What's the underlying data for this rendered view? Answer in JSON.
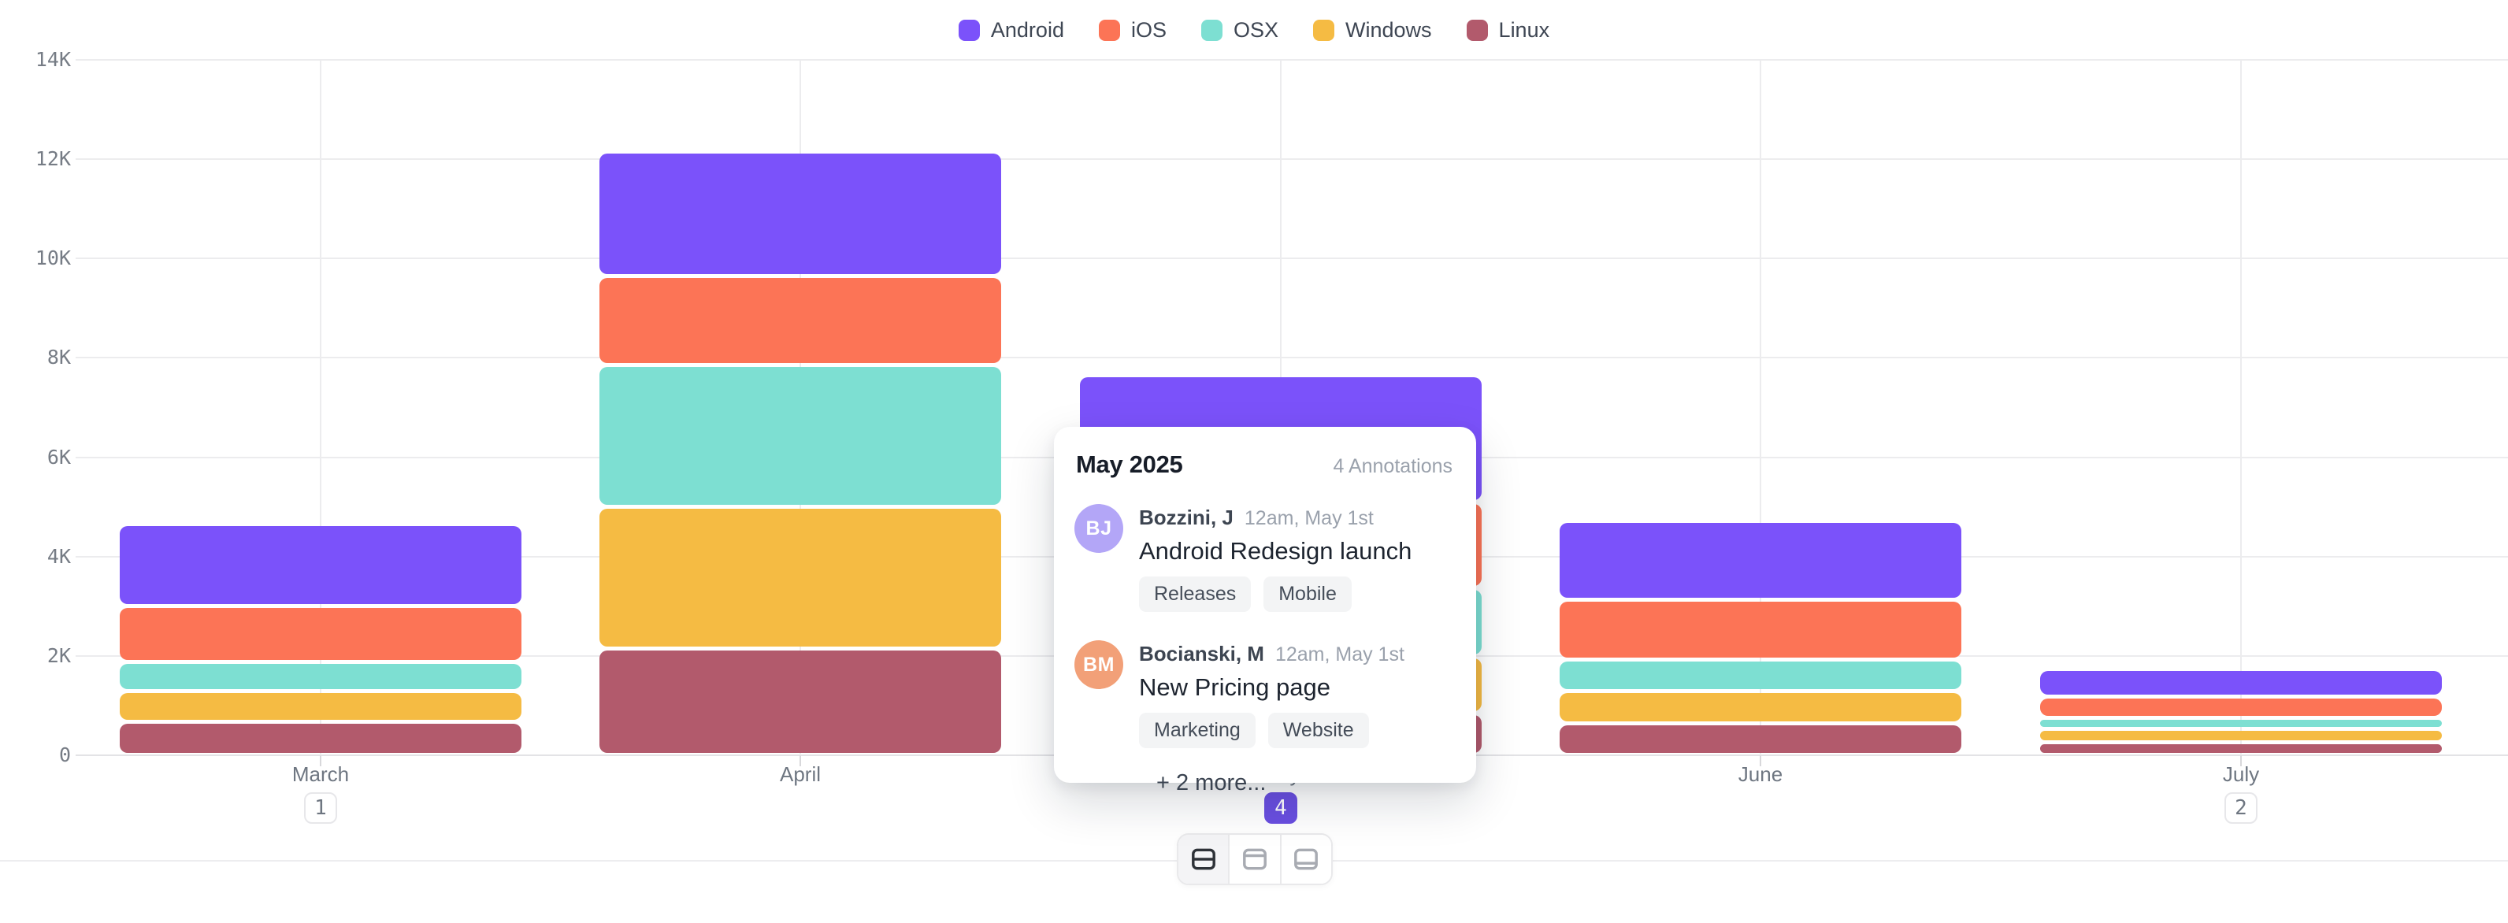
{
  "legend": {
    "items": [
      {
        "label": "Android",
        "color": "#7b52fa"
      },
      {
        "label": "iOS",
        "color": "#fc7456"
      },
      {
        "label": "OSX",
        "color": "#7ddfd2"
      },
      {
        "label": "Windows",
        "color": "#f5bb43"
      },
      {
        "label": "Linux",
        "color": "#b25a6c"
      }
    ]
  },
  "chart_data": {
    "type": "bar",
    "stacked": true,
    "categories": [
      "March",
      "April",
      "May",
      "June",
      "July"
    ],
    "series": [
      {
        "name": "Android",
        "color": "#7b52fa",
        "values": [
          1650,
          2500,
          2550,
          1580,
          560
        ]
      },
      {
        "name": "iOS",
        "color": "#fc7456",
        "values": [
          1120,
          1800,
          1730,
          1200,
          420
        ]
      },
      {
        "name": "OSX",
        "color": "#7ddfd2",
        "values": [
          590,
          2850,
          1380,
          630,
          230
        ]
      },
      {
        "name": "Windows",
        "color": "#f5bb43",
        "values": [
          610,
          2850,
          1140,
          660,
          270
        ]
      },
      {
        "name": "Linux",
        "color": "#b25a6c",
        "values": [
          680,
          2150,
          850,
          640,
          260
        ]
      }
    ],
    "title": "",
    "xlabel": "",
    "ylabel": "",
    "ylim": [
      0,
      14000
    ],
    "y_ticks": [
      {
        "label": "0",
        "value": 0
      },
      {
        "label": "2K",
        "value": 2000
      },
      {
        "label": "4K",
        "value": 4000
      },
      {
        "label": "6K",
        "value": 6000
      },
      {
        "label": "8K",
        "value": 8000
      },
      {
        "label": "10K",
        "value": 10000
      },
      {
        "label": "12K",
        "value": 12000
      },
      {
        "label": "14K",
        "value": 14000
      }
    ],
    "grid": "horizontal and vertical, light gray",
    "legend_position": "top-center",
    "annotation_badges": [
      {
        "category": "March",
        "count": "1",
        "active": false
      },
      {
        "category": "May",
        "count": "4",
        "active": true
      },
      {
        "category": "July",
        "count": "2",
        "active": false
      }
    ],
    "badge_active_color": "#6a4fe1"
  },
  "tooltip": {
    "title": "May 2025",
    "annotations_count_label": "4 Annotations",
    "items": [
      {
        "initials": "BJ",
        "avatar_color": "#b3a6f7",
        "author": "Bozzini, J",
        "time": "12am, May 1st",
        "title": "Android Redesign launch",
        "tags": [
          "Releases",
          "Mobile"
        ]
      },
      {
        "initials": "BM",
        "avatar_color": "#f2a078",
        "author": "Bocianski, M",
        "time": "12am, May 1st",
        "title": "New Pricing page",
        "tags": [
          "Marketing",
          "Website"
        ]
      }
    ],
    "more_label": "+ 2 more..."
  },
  "view_switcher": {
    "options": [
      {
        "icon": "layout-split-horizontal-icon",
        "active": true
      },
      {
        "icon": "layout-panel-top-icon",
        "active": false
      },
      {
        "icon": "layout-panel-bottom-icon",
        "active": false
      }
    ]
  }
}
